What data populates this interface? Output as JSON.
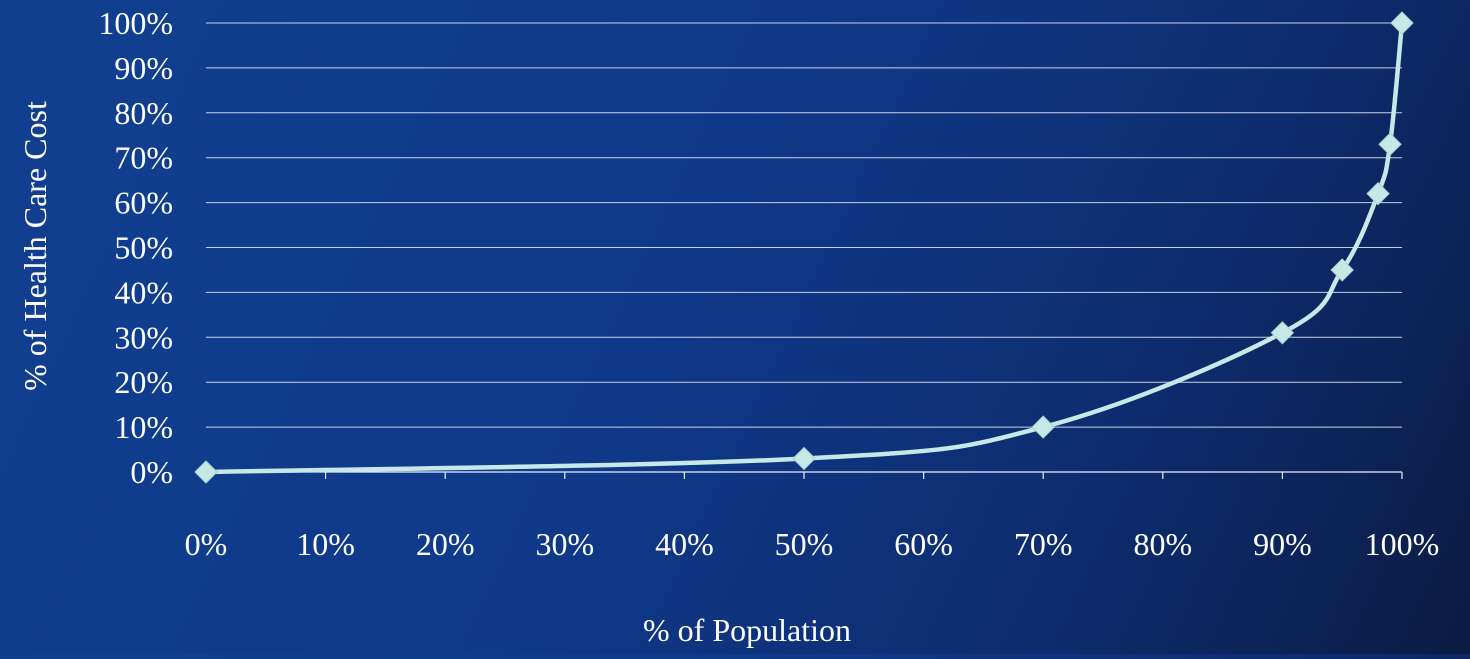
{
  "chart_data": {
    "type": "line",
    "title": "",
    "xlabel": "% of Population",
    "ylabel": "% of Health Care Cost",
    "x_ticks": [
      "0%",
      "10%",
      "20%",
      "30%",
      "40%",
      "50%",
      "60%",
      "70%",
      "80%",
      "90%",
      "100%"
    ],
    "y_ticks": [
      "0%",
      "10%",
      "20%",
      "30%",
      "40%",
      "50%",
      "60%",
      "70%",
      "80%",
      "90%",
      "100%"
    ],
    "xlim": [
      0,
      100
    ],
    "ylim": [
      0,
      100
    ],
    "grid": "horizontal",
    "legend": "none",
    "series": [
      {
        "x": [
          0,
          50,
          70,
          90,
          95,
          98,
          99,
          100
        ],
        "y": [
          0,
          3,
          10,
          31,
          45,
          62,
          73,
          100
        ]
      }
    ]
  },
  "colors": {
    "background": "#113f8f",
    "series_line": "#c6e8e6",
    "marker": "#c6e8e6",
    "gridline": "#e8eef8",
    "text": "#ffffff"
  }
}
